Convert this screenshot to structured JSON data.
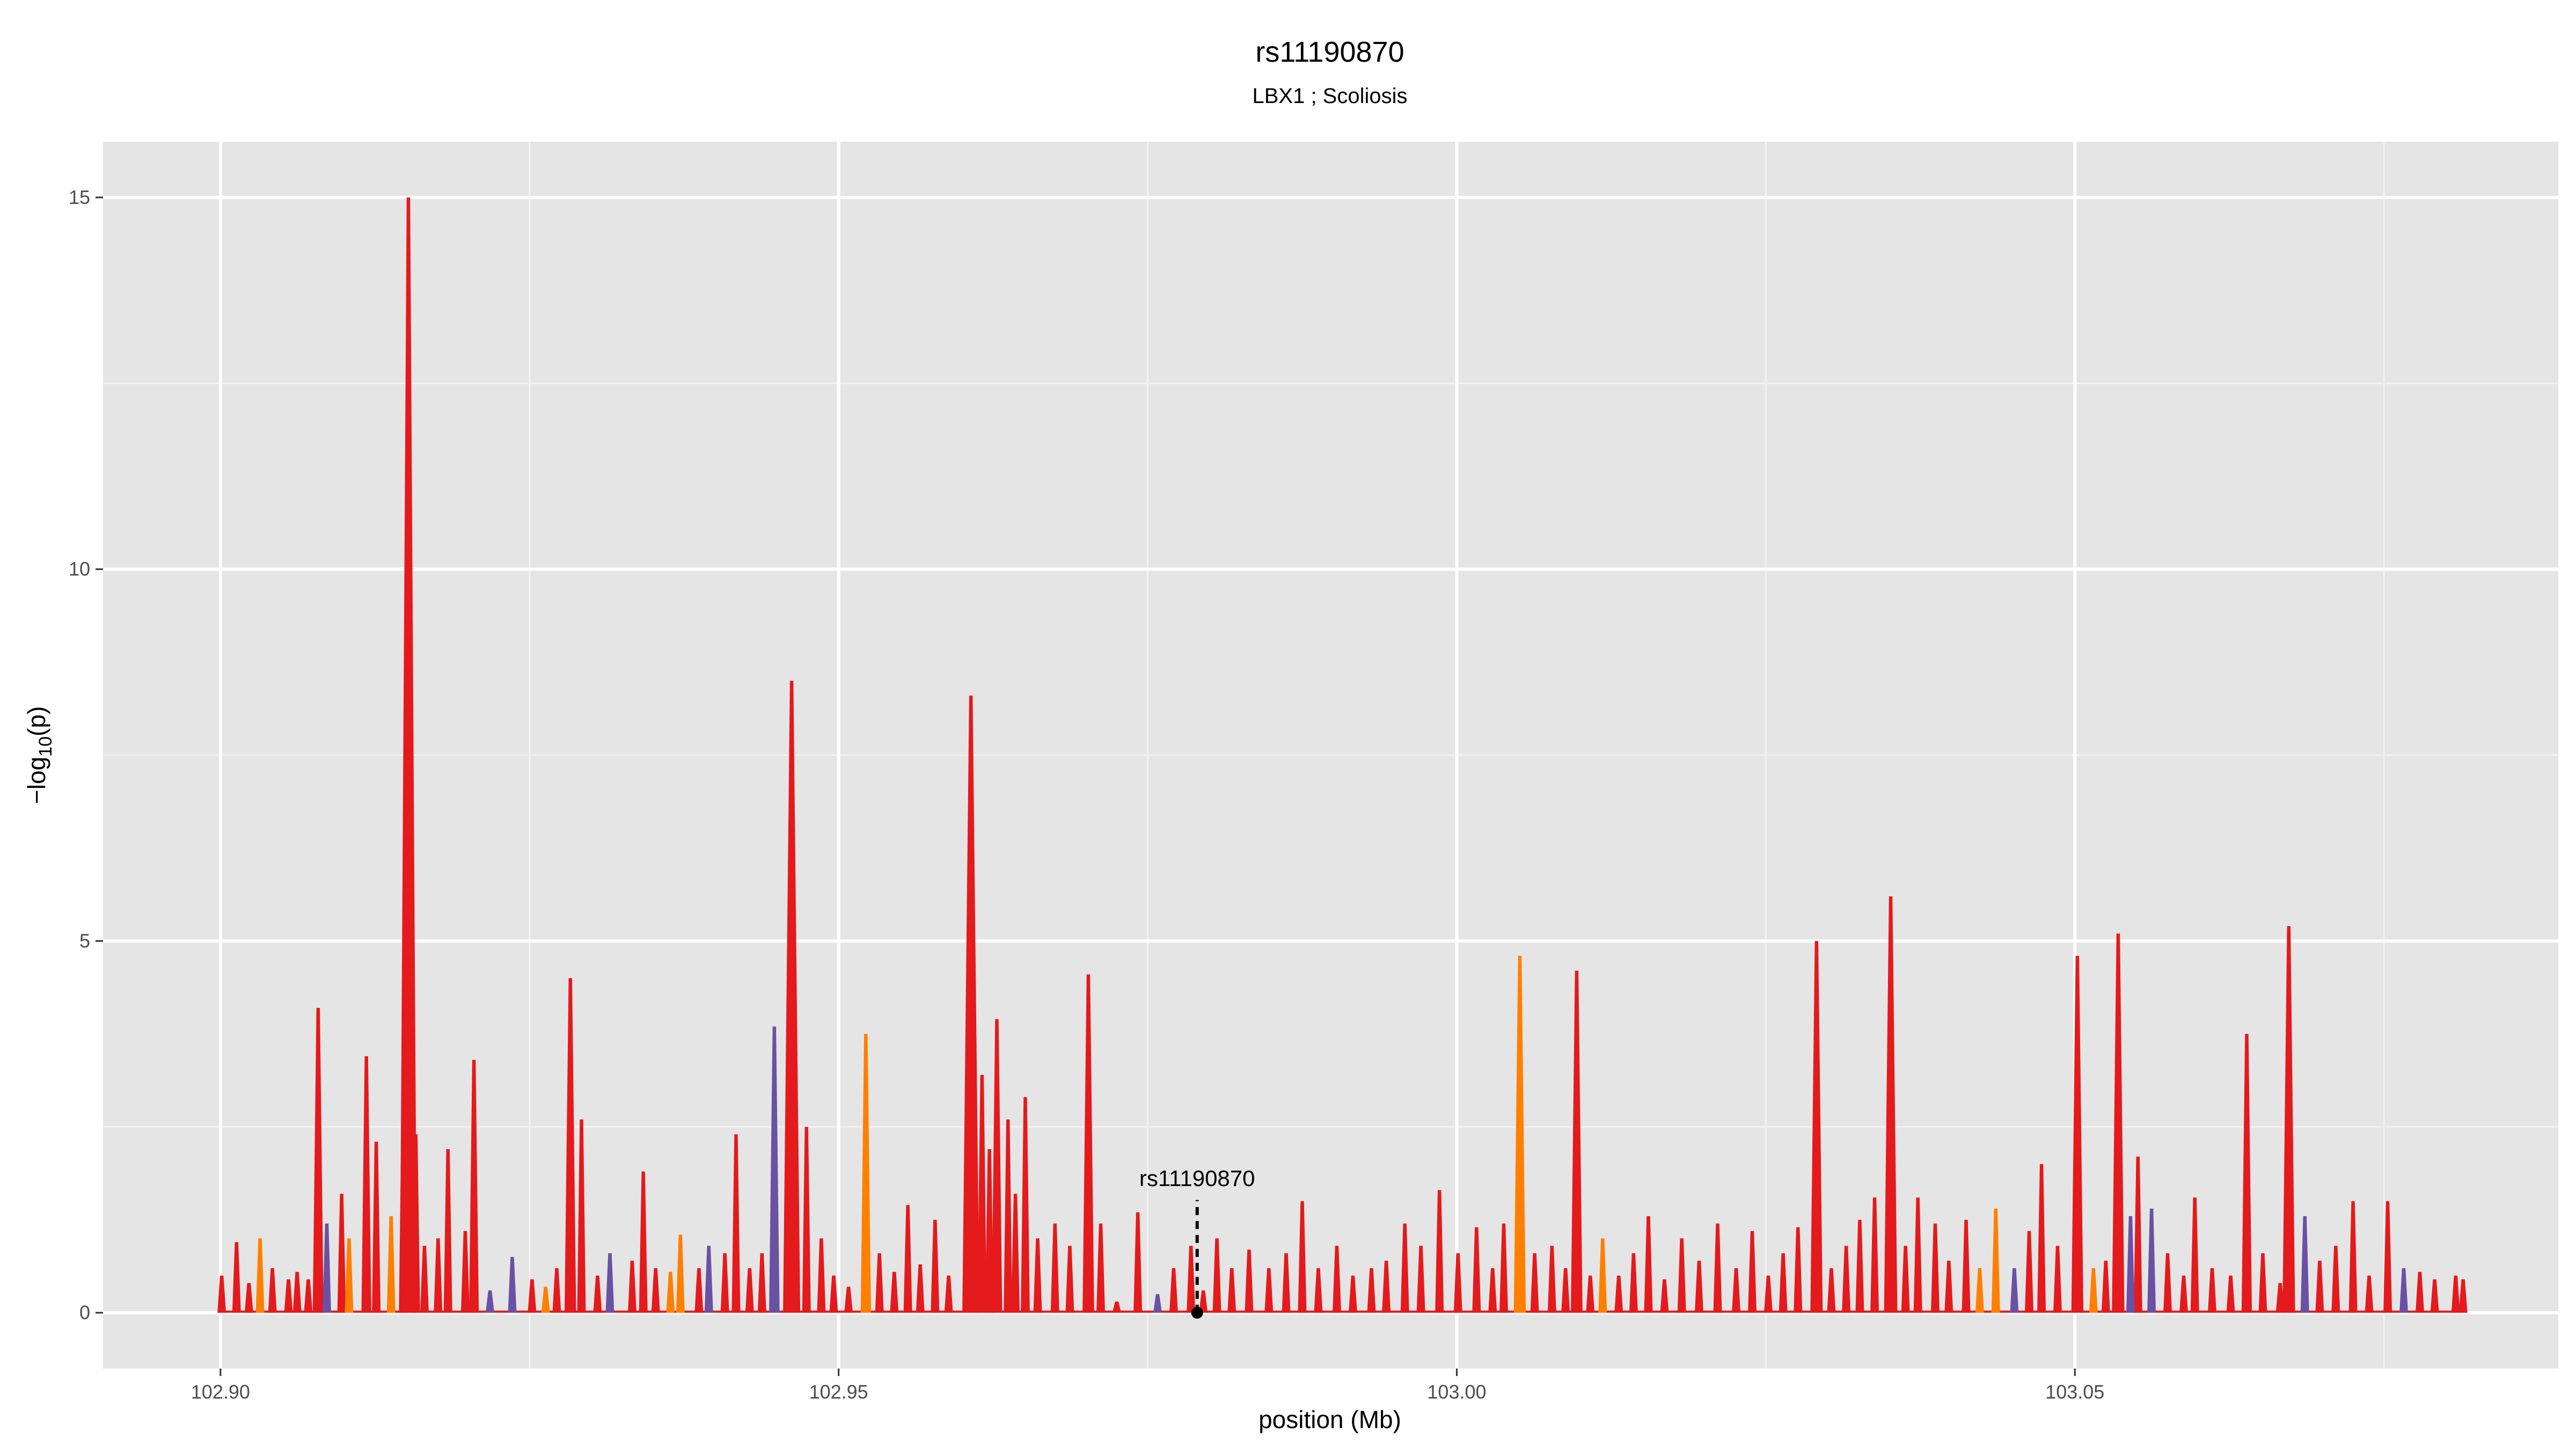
{
  "chart_data": {
    "type": "area",
    "title": "rs11190870",
    "subtitle": "LBX1 ; Scoliosis",
    "xlabel": "position (Mb)",
    "ylabel": "-log10(p)",
    "xlim": [
      102.8905,
      103.0891
    ],
    "ylim": [
      -0.75,
      15.75
    ],
    "x_ticks": [
      102.9,
      102.95,
      103.0,
      103.05
    ],
    "x_tick_labels": [
      "102.90",
      "102.95",
      "103.00",
      "103.05"
    ],
    "y_ticks": [
      0,
      5,
      10,
      15
    ],
    "y_tick_labels": [
      "0",
      "5",
      "10",
      "15"
    ],
    "grid": true,
    "background": "#e5e5e5",
    "colors": {
      "red": "#e41a1c",
      "orange": "#ff7f00",
      "purple": "#6a51a3"
    },
    "annotation": {
      "label": "rs11190870",
      "x": 102.979,
      "y": 0
    },
    "peaks": [
      {
        "x": 102.9001,
        "y": 0.5,
        "c": "red"
      },
      {
        "x": 102.9013,
        "y": 0.95,
        "c": "red"
      },
      {
        "x": 102.9023,
        "y": 0.4,
        "c": "red"
      },
      {
        "x": 102.9032,
        "y": 1.0,
        "c": "orange"
      },
      {
        "x": 102.9042,
        "y": 0.6,
        "c": "red"
      },
      {
        "x": 102.9055,
        "y": 0.45,
        "c": "red"
      },
      {
        "x": 102.9062,
        "y": 0.55,
        "c": "red"
      },
      {
        "x": 102.9071,
        "y": 0.45,
        "c": "red"
      },
      {
        "x": 102.9079,
        "y": 4.1,
        "c": "red"
      },
      {
        "x": 102.9086,
        "y": 1.2,
        "c": "purple"
      },
      {
        "x": 102.9098,
        "y": 1.6,
        "c": "red"
      },
      {
        "x": 102.9104,
        "y": 1.0,
        "c": "orange"
      },
      {
        "x": 102.9118,
        "y": 3.45,
        "c": "red"
      },
      {
        "x": 102.9126,
        "y": 2.3,
        "c": "red"
      },
      {
        "x": 102.9138,
        "y": 1.3,
        "c": "orange"
      },
      {
        "x": 102.9148,
        "y": 3.0,
        "c": "red"
      },
      {
        "x": 102.9152,
        "y": 15.0,
        "c": "red"
      },
      {
        "x": 102.9158,
        "y": 2.4,
        "c": "red"
      },
      {
        "x": 102.9165,
        "y": 0.9,
        "c": "red"
      },
      {
        "x": 102.9176,
        "y": 1.0,
        "c": "red"
      },
      {
        "x": 102.9184,
        "y": 2.2,
        "c": "red"
      },
      {
        "x": 102.9198,
        "y": 1.1,
        "c": "red"
      },
      {
        "x": 102.9205,
        "y": 3.4,
        "c": "red"
      },
      {
        "x": 102.9218,
        "y": 0.3,
        "c": "purple"
      },
      {
        "x": 102.9236,
        "y": 0.75,
        "c": "purple"
      },
      {
        "x": 102.9252,
        "y": 0.45,
        "c": "red"
      },
      {
        "x": 102.9263,
        "y": 0.35,
        "c": "orange"
      },
      {
        "x": 102.9272,
        "y": 0.6,
        "c": "red"
      },
      {
        "x": 102.9283,
        "y": 4.5,
        "c": "red"
      },
      {
        "x": 102.9292,
        "y": 2.6,
        "c": "red"
      },
      {
        "x": 102.9305,
        "y": 0.5,
        "c": "red"
      },
      {
        "x": 102.9315,
        "y": 0.8,
        "c": "purple"
      },
      {
        "x": 102.9333,
        "y": 0.7,
        "c": "red"
      },
      {
        "x": 102.9342,
        "y": 1.9,
        "c": "red"
      },
      {
        "x": 102.9352,
        "y": 0.6,
        "c": "red"
      },
      {
        "x": 102.9364,
        "y": 0.55,
        "c": "orange"
      },
      {
        "x": 102.9372,
        "y": 1.05,
        "c": "orange"
      },
      {
        "x": 102.9387,
        "y": 0.6,
        "c": "red"
      },
      {
        "x": 102.9395,
        "y": 0.9,
        "c": "purple"
      },
      {
        "x": 102.9408,
        "y": 0.8,
        "c": "red"
      },
      {
        "x": 102.9417,
        "y": 2.4,
        "c": "red"
      },
      {
        "x": 102.9428,
        "y": 0.6,
        "c": "red"
      },
      {
        "x": 102.9438,
        "y": 0.8,
        "c": "red"
      },
      {
        "x": 102.9448,
        "y": 3.85,
        "c": "purple"
      },
      {
        "x": 102.9462,
        "y": 8.5,
        "c": "red"
      },
      {
        "x": 102.9474,
        "y": 2.5,
        "c": "red"
      },
      {
        "x": 102.9486,
        "y": 1.0,
        "c": "red"
      },
      {
        "x": 102.9496,
        "y": 0.5,
        "c": "red"
      },
      {
        "x": 102.9508,
        "y": 0.35,
        "c": "red"
      },
      {
        "x": 102.9522,
        "y": 3.75,
        "c": "orange"
      },
      {
        "x": 102.9533,
        "y": 0.8,
        "c": "red"
      },
      {
        "x": 102.9545,
        "y": 0.55,
        "c": "red"
      },
      {
        "x": 102.9556,
        "y": 1.45,
        "c": "red"
      },
      {
        "x": 102.9566,
        "y": 0.65,
        "c": "red"
      },
      {
        "x": 102.9578,
        "y": 1.25,
        "c": "red"
      },
      {
        "x": 102.9589,
        "y": 0.5,
        "c": "red"
      },
      {
        "x": 102.9607,
        "y": 8.3,
        "c": "red"
      },
      {
        "x": 102.9616,
        "y": 3.2,
        "c": "red"
      },
      {
        "x": 102.9622,
        "y": 2.2,
        "c": "red"
      },
      {
        "x": 102.9628,
        "y": 3.95,
        "c": "red"
      },
      {
        "x": 102.9637,
        "y": 2.6,
        "c": "red"
      },
      {
        "x": 102.9643,
        "y": 1.6,
        "c": "red"
      },
      {
        "x": 102.9651,
        "y": 2.9,
        "c": "red"
      },
      {
        "x": 102.9661,
        "y": 1.0,
        "c": "red"
      },
      {
        "x": 102.9675,
        "y": 1.2,
        "c": "red"
      },
      {
        "x": 102.9687,
        "y": 0.9,
        "c": "red"
      },
      {
        "x": 102.9702,
        "y": 4.55,
        "c": "red"
      },
      {
        "x": 102.9712,
        "y": 1.2,
        "c": "red"
      },
      {
        "x": 102.9725,
        "y": 0.15,
        "c": "red"
      },
      {
        "x": 102.9742,
        "y": 1.35,
        "c": "red"
      },
      {
        "x": 102.9758,
        "y": 0.25,
        "c": "purple"
      },
      {
        "x": 102.9771,
        "y": 0.6,
        "c": "red"
      },
      {
        "x": 102.9785,
        "y": 0.9,
        "c": "red"
      },
      {
        "x": 102.9795,
        "y": 0.3,
        "c": "red"
      },
      {
        "x": 102.9806,
        "y": 1.0,
        "c": "red"
      },
      {
        "x": 102.9818,
        "y": 0.6,
        "c": "red"
      },
      {
        "x": 102.9832,
        "y": 0.85,
        "c": "red"
      },
      {
        "x": 102.9848,
        "y": 0.6,
        "c": "red"
      },
      {
        "x": 102.9862,
        "y": 0.8,
        "c": "red"
      },
      {
        "x": 102.9875,
        "y": 1.5,
        "c": "red"
      },
      {
        "x": 102.9888,
        "y": 0.6,
        "c": "red"
      },
      {
        "x": 102.9903,
        "y": 0.9,
        "c": "red"
      },
      {
        "x": 102.9916,
        "y": 0.5,
        "c": "red"
      },
      {
        "x": 102.9931,
        "y": 0.6,
        "c": "red"
      },
      {
        "x": 102.9943,
        "y": 0.7,
        "c": "red"
      },
      {
        "x": 102.9958,
        "y": 1.2,
        "c": "red"
      },
      {
        "x": 102.9971,
        "y": 0.9,
        "c": "red"
      },
      {
        "x": 102.9986,
        "y": 1.65,
        "c": "red"
      },
      {
        "x": 103.0001,
        "y": 0.8,
        "c": "red"
      },
      {
        "x": 103.0016,
        "y": 1.15,
        "c": "red"
      },
      {
        "x": 103.0029,
        "y": 0.6,
        "c": "red"
      },
      {
        "x": 103.0038,
        "y": 1.2,
        "c": "red"
      },
      {
        "x": 103.0051,
        "y": 4.8,
        "c": "orange"
      },
      {
        "x": 103.0063,
        "y": 0.8,
        "c": "red"
      },
      {
        "x": 103.0077,
        "y": 0.9,
        "c": "red"
      },
      {
        "x": 103.0088,
        "y": 0.6,
        "c": "red"
      },
      {
        "x": 103.0097,
        "y": 4.6,
        "c": "red"
      },
      {
        "x": 103.0108,
        "y": 0.5,
        "c": "red"
      },
      {
        "x": 103.0118,
        "y": 1.0,
        "c": "orange"
      },
      {
        "x": 103.0131,
        "y": 0.5,
        "c": "red"
      },
      {
        "x": 103.0143,
        "y": 0.8,
        "c": "red"
      },
      {
        "x": 103.0155,
        "y": 1.3,
        "c": "red"
      },
      {
        "x": 103.0168,
        "y": 0.45,
        "c": "red"
      },
      {
        "x": 103.0182,
        "y": 1.0,
        "c": "red"
      },
      {
        "x": 103.0196,
        "y": 0.7,
        "c": "red"
      },
      {
        "x": 103.0211,
        "y": 1.2,
        "c": "red"
      },
      {
        "x": 103.0226,
        "y": 0.6,
        "c": "red"
      },
      {
        "x": 103.0239,
        "y": 1.1,
        "c": "red"
      },
      {
        "x": 103.0252,
        "y": 0.5,
        "c": "red"
      },
      {
        "x": 103.0264,
        "y": 0.8,
        "c": "red"
      },
      {
        "x": 103.0276,
        "y": 1.15,
        "c": "red"
      },
      {
        "x": 103.0291,
        "y": 5.0,
        "c": "red"
      },
      {
        "x": 103.0303,
        "y": 0.6,
        "c": "red"
      },
      {
        "x": 103.0315,
        "y": 0.9,
        "c": "red"
      },
      {
        "x": 103.0326,
        "y": 1.25,
        "c": "red"
      },
      {
        "x": 103.0338,
        "y": 1.55,
        "c": "red"
      },
      {
        "x": 103.0351,
        "y": 5.6,
        "c": "red"
      },
      {
        "x": 103.0363,
        "y": 0.9,
        "c": "red"
      },
      {
        "x": 103.0373,
        "y": 1.55,
        "c": "red"
      },
      {
        "x": 103.0387,
        "y": 1.2,
        "c": "red"
      },
      {
        "x": 103.0398,
        "y": 0.7,
        "c": "red"
      },
      {
        "x": 103.0412,
        "y": 1.25,
        "c": "red"
      },
      {
        "x": 103.0423,
        "y": 0.6,
        "c": "orange"
      },
      {
        "x": 103.0436,
        "y": 1.4,
        "c": "orange"
      },
      {
        "x": 103.0451,
        "y": 0.6,
        "c": "purple"
      },
      {
        "x": 103.0463,
        "y": 1.1,
        "c": "red"
      },
      {
        "x": 103.0473,
        "y": 2.0,
        "c": "red"
      },
      {
        "x": 103.0486,
        "y": 0.9,
        "c": "red"
      },
      {
        "x": 103.0502,
        "y": 4.8,
        "c": "red"
      },
      {
        "x": 103.0515,
        "y": 0.6,
        "c": "orange"
      },
      {
        "x": 103.0525,
        "y": 0.7,
        "c": "red"
      },
      {
        "x": 103.0535,
        "y": 5.1,
        "c": "red"
      },
      {
        "x": 103.0545,
        "y": 1.3,
        "c": "purple"
      },
      {
        "x": 103.0551,
        "y": 2.1,
        "c": "red"
      },
      {
        "x": 103.0562,
        "y": 1.4,
        "c": "purple"
      },
      {
        "x": 103.0575,
        "y": 0.8,
        "c": "red"
      },
      {
        "x": 103.0588,
        "y": 0.5,
        "c": "red"
      },
      {
        "x": 103.0597,
        "y": 1.55,
        "c": "red"
      },
      {
        "x": 103.0611,
        "y": 0.6,
        "c": "red"
      },
      {
        "x": 103.0626,
        "y": 0.5,
        "c": "red"
      },
      {
        "x": 103.0639,
        "y": 3.75,
        "c": "red"
      },
      {
        "x": 103.0652,
        "y": 0.8,
        "c": "red"
      },
      {
        "x": 103.0666,
        "y": 0.4,
        "c": "red"
      },
      {
        "x": 103.0673,
        "y": 5.2,
        "c": "red"
      },
      {
        "x": 103.0686,
        "y": 1.3,
        "c": "purple"
      },
      {
        "x": 103.0698,
        "y": 0.7,
        "c": "red"
      },
      {
        "x": 103.0711,
        "y": 0.9,
        "c": "red"
      },
      {
        "x": 103.0725,
        "y": 1.5,
        "c": "red"
      },
      {
        "x": 103.0738,
        "y": 0.5,
        "c": "red"
      },
      {
        "x": 103.0753,
        "y": 1.5,
        "c": "red"
      },
      {
        "x": 103.0766,
        "y": 0.6,
        "c": "purple"
      },
      {
        "x": 103.0779,
        "y": 0.55,
        "c": "red"
      },
      {
        "x": 103.0791,
        "y": 0.45,
        "c": "red"
      },
      {
        "x": 103.0808,
        "y": 0.5,
        "c": "red"
      },
      {
        "x": 103.0814,
        "y": 0.45,
        "c": "red"
      }
    ]
  }
}
